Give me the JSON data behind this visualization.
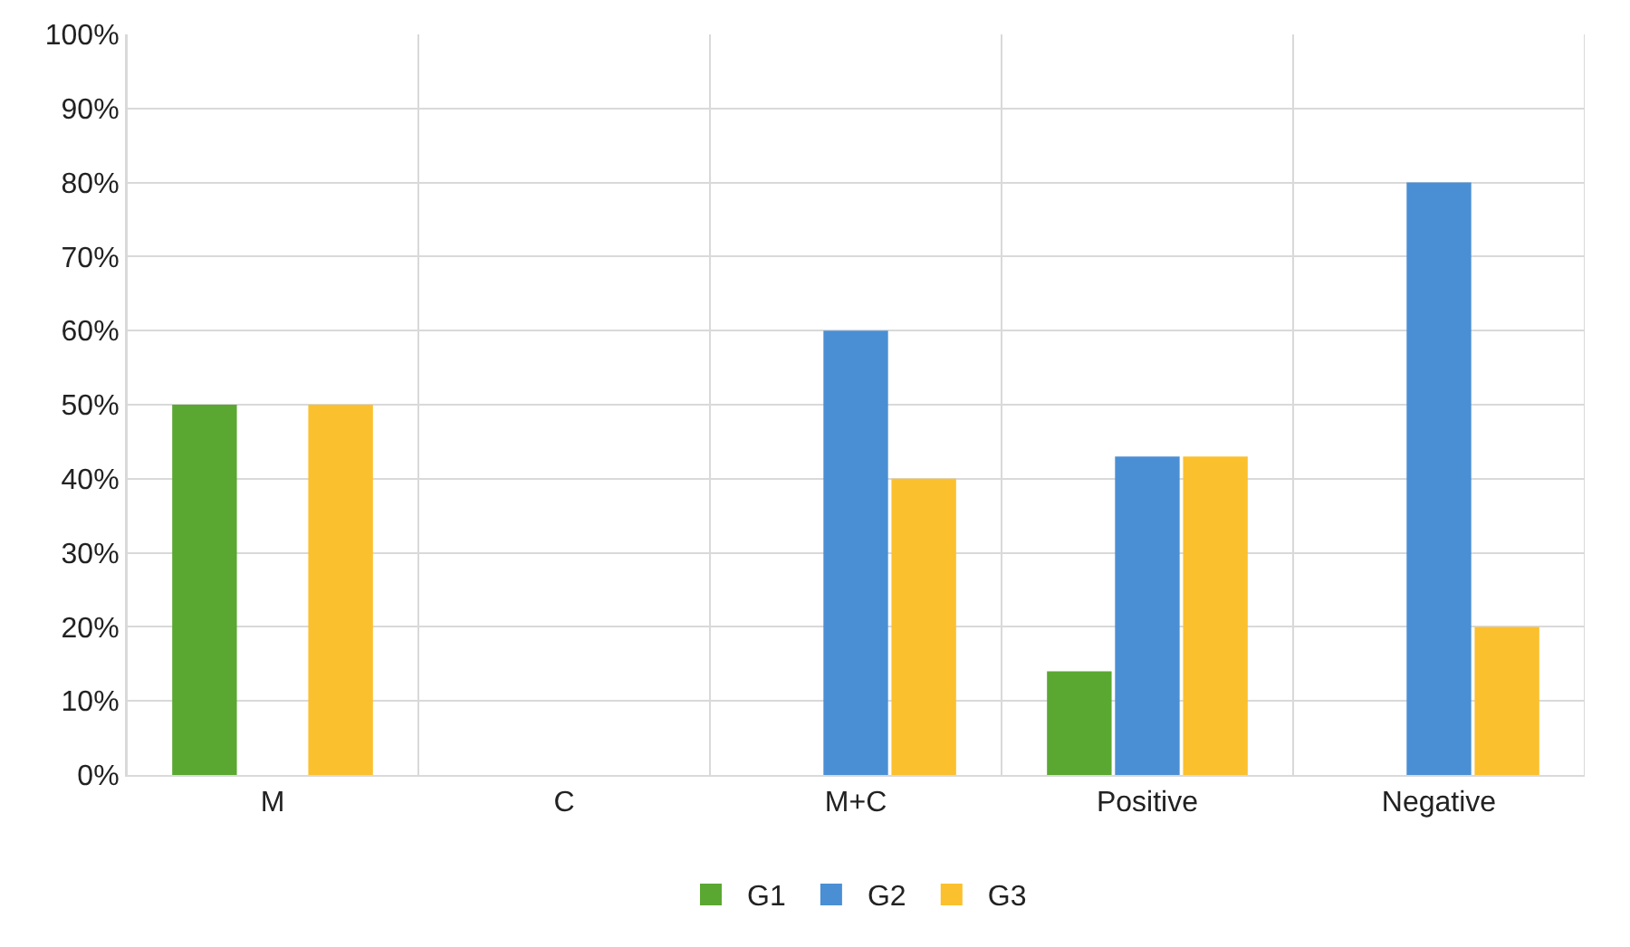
{
  "chart_data": {
    "type": "bar",
    "categories": [
      "M",
      "C",
      "M+C",
      "Positive",
      "Negative"
    ],
    "series": [
      {
        "name": "G1",
        "color": "#5aa832",
        "values": [
          50,
          0,
          0,
          14,
          0
        ]
      },
      {
        "name": "G2",
        "color": "#4a8fd4",
        "values": [
          0,
          0,
          60,
          43,
          80
        ]
      },
      {
        "name": "G3",
        "color": "#fbc02d",
        "values": [
          50,
          0,
          40,
          43,
          20
        ]
      }
    ],
    "ylim": [
      0,
      100
    ],
    "yticks": [
      {
        "value": 0,
        "label": "0%"
      },
      {
        "value": 10,
        "label": "10%"
      },
      {
        "value": 20,
        "label": "20%"
      },
      {
        "value": 30,
        "label": "30%"
      },
      {
        "value": 40,
        "label": "40%"
      },
      {
        "value": 50,
        "label": "50%"
      },
      {
        "value": 60,
        "label": "60%"
      },
      {
        "value": 70,
        "label": "70%"
      },
      {
        "value": 80,
        "label": "80%"
      },
      {
        "value": 90,
        "label": "90%"
      },
      {
        "value": 100,
        "label": "100%"
      }
    ],
    "grid": true,
    "legend": "bottom"
  }
}
